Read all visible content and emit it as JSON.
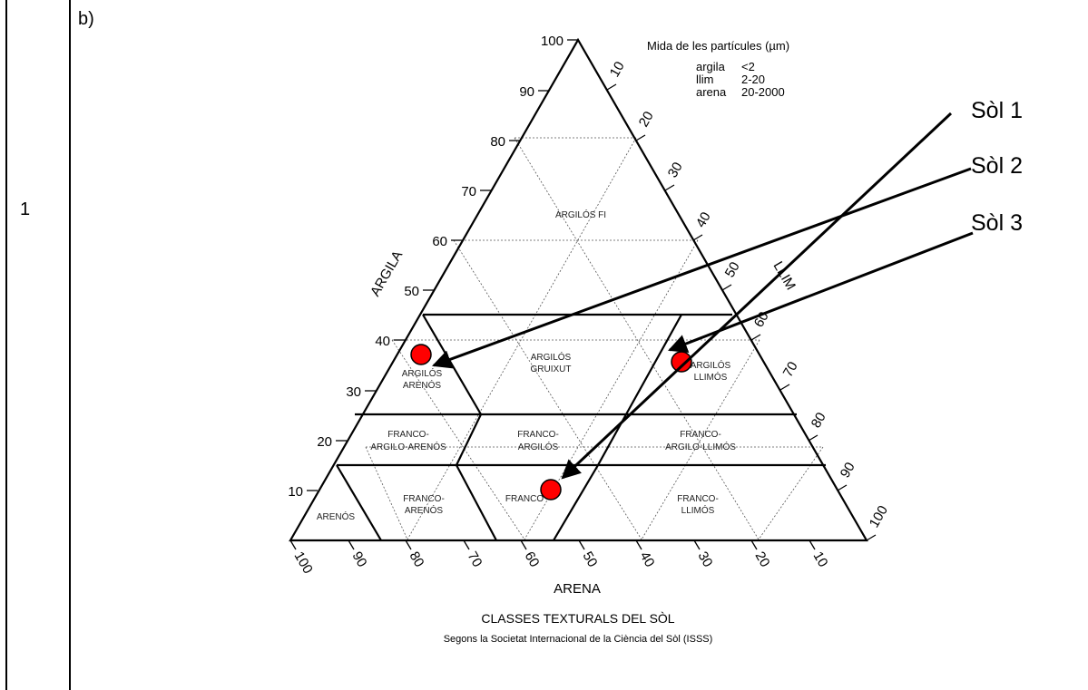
{
  "row_number": "1",
  "part_label": "b)",
  "diagram": {
    "apex_label": "100",
    "argila_axis_label": "ARGILA",
    "llim_axis_label": "LLIM",
    "arena_axis_label": "ARENA",
    "argila_ticks": [
      "90",
      "80",
      "70",
      "60",
      "50",
      "40",
      "30",
      "20",
      "10"
    ],
    "llim_ticks": [
      "10",
      "20",
      "30",
      "40",
      "50",
      "60",
      "70",
      "80",
      "90",
      "100"
    ],
    "arena_ticks": [
      "100",
      "90",
      "80",
      "70",
      "60",
      "50",
      "40",
      "30",
      "20",
      "10"
    ],
    "legend_title": "Mida de les partícules (µm)",
    "legend_rows": [
      {
        "name": "argila",
        "range": "<2"
      },
      {
        "name": "llim",
        "range": "2-20"
      },
      {
        "name": "arena",
        "range": "20-2000"
      }
    ],
    "zones": {
      "argilos_fi": "ARGILÓS FI",
      "argilos_gruixut_1": "ARGILÓS",
      "argilos_gruixut_2": "GRUIXUT",
      "argilos_arenos_1": "ARGILÓS",
      "argilos_arenos_2": "ARENÓS",
      "argilos_llimos_1": "ARGILÓS",
      "argilos_llimos_2": "LLIMÓS",
      "franco_argilo_arenos_1": "FRANCO-",
      "franco_argilo_arenos_2": "ARGILO-ARENÓS",
      "franco_argilos_1": "FRANCO-",
      "franco_argilos_2": "ARGILÓS",
      "franco_argilo_llimos_1": "FRANCO-",
      "franco_argilo_llimos_2": "ARGILO-LLIMÓS",
      "arenos": "ARENÓS",
      "franco_arenos_1": "FRANCO-",
      "franco_arenos_2": "ARENÓS",
      "franco": "FRANCO",
      "franco_llimos_1": "FRANCO-",
      "franco_llimos_2": "LLIMÓS"
    },
    "caption_title": "CLASSES TEXTURALS DEL SÒL",
    "caption_subtitle": "Segons la Societat Internacional de la Ciència del Sòl (ISSS)",
    "soils": [
      {
        "name": "Sòl 1",
        "argila": 36,
        "llim": 46,
        "arena": 18
      },
      {
        "name": "Sòl 2",
        "argila": 37,
        "llim": 5,
        "arena": 58
      },
      {
        "name": "Sòl 3",
        "argila": 10,
        "llim": 38,
        "arena": 52
      }
    ],
    "point_color": "#ff0000"
  }
}
